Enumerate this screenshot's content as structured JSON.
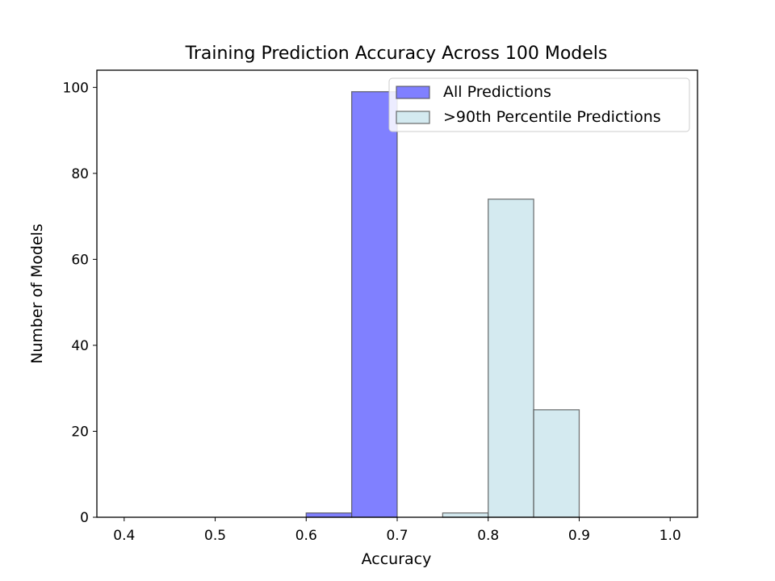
{
  "chart_data": {
    "type": "bar",
    "title": "Training Prediction Accuracy Across 100 Models",
    "xlabel": "Accuracy",
    "ylabel": "Number of Models",
    "xlim": [
      0.37,
      1.03
    ],
    "ylim": [
      0,
      104
    ],
    "x_ticks": [
      "0.4",
      "0.5",
      "0.6",
      "0.7",
      "0.8",
      "0.9",
      "1.0"
    ],
    "y_ticks": [
      "0",
      "20",
      "40",
      "60",
      "80",
      "100"
    ],
    "grid": false,
    "legend_position": "top-right",
    "series": [
      {
        "name": "All Predictions",
        "color": "#8080ff",
        "bins": [
          {
            "x0": 0.6,
            "x1": 0.65,
            "count": 1
          },
          {
            "x0": 0.65,
            "x1": 0.7,
            "count": 99
          }
        ]
      },
      {
        "name": ">90th Percentile Predictions",
        "color": "#d4eaf0",
        "bins": [
          {
            "x0": 0.75,
            "x1": 0.8,
            "count": 1
          },
          {
            "x0": 0.8,
            "x1": 0.85,
            "count": 74
          },
          {
            "x0": 0.85,
            "x1": 0.9,
            "count": 25
          }
        ]
      }
    ]
  }
}
